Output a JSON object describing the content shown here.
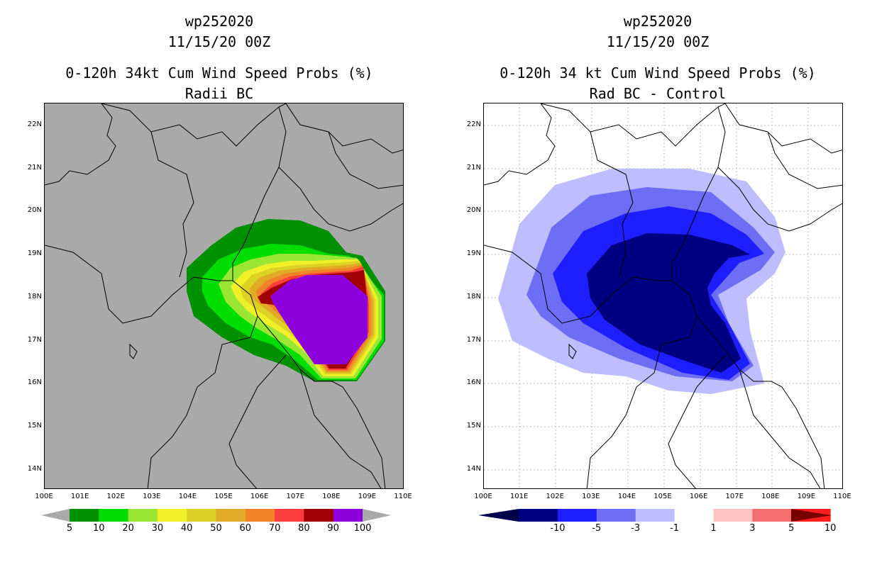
{
  "left_panel": {
    "storm_id": "wp252020",
    "datetime": "11/15/20 00Z",
    "title": "0-120h 34kt Cum Wind Speed Probs (%)",
    "subtitle": "Radii BC",
    "lat_labels": [
      "22N",
      "21N",
      "20N",
      "19N",
      "18N",
      "17N",
      "16N",
      "15N",
      "14N"
    ],
    "lon_labels": [
      "100E",
      "101E",
      "102E",
      "103E",
      "104E",
      "105E",
      "106E",
      "107E",
      "108E",
      "109E",
      "110E"
    ],
    "colorbar": {
      "ticks": [
        "5",
        "10",
        "20",
        "30",
        "40",
        "50",
        "60",
        "70",
        "80",
        "90",
        "100"
      ],
      "colors": [
        "#009100",
        "#00dd00",
        "#99e633",
        "#f0f028",
        "#dcd223",
        "#e1aa26",
        "#f08228",
        "#fa3c3c",
        "#a00000",
        "#8c00dc"
      ],
      "end_color": "#a9a9a9"
    },
    "map_background": "#a9a9a9"
  },
  "right_panel": {
    "storm_id": "wp252020",
    "datetime": "11/15/20 00Z",
    "title": "0-120h 34 kt Cum Wind Speed Probs (%)",
    "subtitle": "Rad BC - Control",
    "lat_labels": [
      "22N",
      "21N",
      "20N",
      "19N",
      "18N",
      "17N",
      "16N",
      "15N",
      "14N"
    ],
    "lon_labels": [
      "100E",
      "101E",
      "102E",
      "103E",
      "104E",
      "105E",
      "106E",
      "107E",
      "108E",
      "109E",
      "110E"
    ],
    "colorbar": {
      "ticks": [
        "-10",
        "-5",
        "-3",
        "-1",
        "1",
        "3",
        "5",
        "10"
      ],
      "colors": [
        "#000082",
        "#1e1eff",
        "#6e6ef5",
        "#bebeff",
        "#ffffff",
        "#ffc3c3",
        "#f56e6e",
        "#ff1e1e",
        "#820000"
      ],
      "end_left": "#00004b",
      "end_right": "#780000"
    },
    "map_background": "#ffffff"
  }
}
